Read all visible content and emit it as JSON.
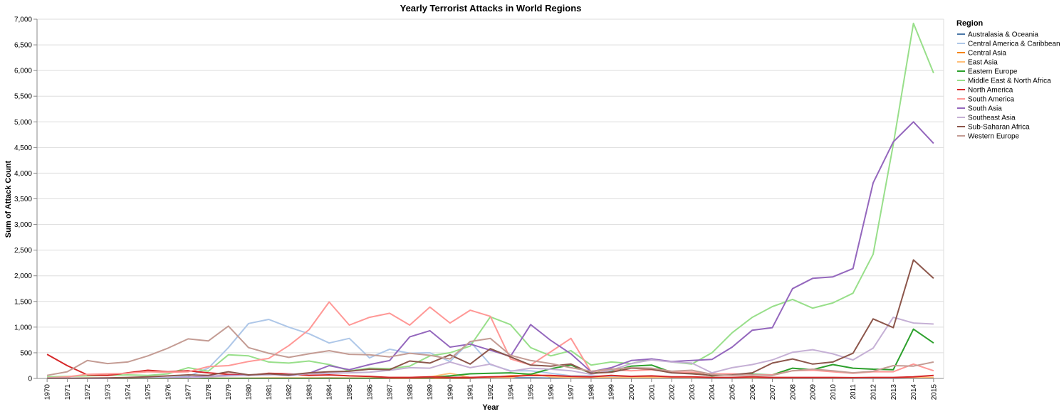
{
  "chart_data": {
    "type": "line",
    "title": "Yearly Terrorist Attacks in World Regions",
    "xlabel": "Year",
    "ylabel": "Sum of Attack Count",
    "ylim": [
      0,
      7000
    ],
    "yticks": [
      "0",
      "500",
      "1,000",
      "1,500",
      "2,000",
      "2,500",
      "3,000",
      "3,500",
      "4,000",
      "4,500",
      "5,000",
      "5,500",
      "6,000",
      "6,500",
      "7,000"
    ],
    "ytick_values": [
      0,
      500,
      1000,
      1500,
      2000,
      2500,
      3000,
      3500,
      4000,
      4500,
      5000,
      5500,
      6000,
      6500,
      7000
    ],
    "grid": true,
    "legend_title": "Region",
    "legend_position": "right",
    "x": [
      "1970",
      "1971",
      "1972",
      "1973",
      "1974",
      "1975",
      "1976",
      "1977",
      "1978",
      "1979",
      "1980",
      "1981",
      "1982",
      "1983",
      "1984",
      "1985",
      "1986",
      "1987",
      "1988",
      "1989",
      "1990",
      "1991",
      "1992",
      "1994",
      "1995",
      "1996",
      "1997",
      "1998",
      "1999",
      "2000",
      "2001",
      "2002",
      "2003",
      "2004",
      "2005",
      "2006",
      "2007",
      "2008",
      "2009",
      "2010",
      "2011",
      "2012",
      "2013",
      "2014",
      "2015"
    ],
    "series": [
      {
        "name": "Australasia & Oceania",
        "color": "#4c78a8",
        "values": [
          1,
          1,
          1,
          1,
          1,
          1,
          1,
          1,
          1,
          1,
          1,
          1,
          1,
          5,
          10,
          5,
          5,
          5,
          10,
          15,
          20,
          20,
          5,
          10,
          10,
          5,
          5,
          5,
          5,
          5,
          5,
          5,
          5,
          5,
          5,
          5,
          5,
          5,
          5,
          5,
          5,
          5,
          5,
          5,
          5
        ]
      },
      {
        "name": "Central America & Caribbean",
        "color": "#aec7e8",
        "values": [
          5,
          5,
          5,
          5,
          5,
          10,
          20,
          40,
          200,
          600,
          1070,
          1150,
          1000,
          870,
          690,
          780,
          400,
          570,
          490,
          500,
          330,
          720,
          270,
          150,
          150,
          100,
          50,
          50,
          30,
          20,
          15,
          10,
          10,
          5,
          5,
          10,
          5,
          5,
          5,
          5,
          5,
          5,
          5,
          5,
          5
        ]
      },
      {
        "name": "Central Asia",
        "color": "#f58518",
        "values": [
          0,
          0,
          0,
          0,
          0,
          0,
          0,
          0,
          0,
          0,
          0,
          0,
          0,
          0,
          0,
          0,
          0,
          0,
          0,
          0,
          0,
          0,
          20,
          50,
          60,
          50,
          30,
          20,
          15,
          20,
          20,
          15,
          10,
          10,
          10,
          5,
          5,
          5,
          5,
          5,
          5,
          10,
          10,
          15,
          10
        ]
      },
      {
        "name": "East Asia",
        "color": "#ffbf79",
        "values": [
          5,
          5,
          10,
          5,
          5,
          5,
          5,
          5,
          5,
          5,
          5,
          10,
          10,
          10,
          10,
          10,
          10,
          20,
          20,
          30,
          100,
          20,
          20,
          15,
          90,
          30,
          20,
          20,
          15,
          15,
          15,
          10,
          10,
          10,
          5,
          5,
          10,
          10,
          10,
          10,
          10,
          10,
          10,
          20,
          20
        ]
      },
      {
        "name": "Eastern Europe",
        "color": "#2ca02c",
        "values": [
          1,
          1,
          1,
          1,
          1,
          1,
          1,
          1,
          1,
          1,
          1,
          1,
          1,
          1,
          1,
          1,
          1,
          5,
          10,
          20,
          50,
          90,
          100,
          110,
          80,
          190,
          260,
          100,
          140,
          240,
          260,
          120,
          110,
          50,
          80,
          80,
          70,
          200,
          170,
          270,
          200,
          180,
          170,
          960,
          690
        ]
      },
      {
        "name": "Middle East & North Africa",
        "color": "#98df8a",
        "values": [
          30,
          40,
          50,
          60,
          70,
          60,
          90,
          210,
          140,
          460,
          440,
          320,
          300,
          340,
          270,
          150,
          200,
          190,
          240,
          440,
          500,
          630,
          1200,
          1050,
          600,
          440,
          540,
          260,
          320,
          290,
          380,
          320,
          280,
          500,
          890,
          1190,
          1400,
          1540,
          1370,
          1470,
          1660,
          2420,
          4560,
          6920,
          5950
        ]
      },
      {
        "name": "North America",
        "color": "#d62728",
        "values": [
          470,
          250,
          70,
          60,
          110,
          160,
          130,
          150,
          110,
          80,
          60,
          100,
          90,
          60,
          70,
          50,
          40,
          20,
          20,
          30,
          20,
          20,
          30,
          40,
          60,
          60,
          40,
          30,
          60,
          40,
          50,
          30,
          30,
          20,
          20,
          30,
          20,
          20,
          20,
          20,
          15,
          20,
          20,
          30,
          60
        ]
      },
      {
        "name": "South America",
        "color": "#ff9896",
        "values": [
          10,
          30,
          80,
          90,
          100,
          130,
          120,
          130,
          230,
          250,
          330,
          390,
          640,
          950,
          1490,
          1040,
          1190,
          1270,
          1040,
          1390,
          1080,
          1330,
          1210,
          380,
          260,
          520,
          780,
          130,
          170,
          150,
          170,
          120,
          120,
          90,
          90,
          70,
          70,
          150,
          160,
          130,
          100,
          130,
          130,
          280,
          150
        ]
      },
      {
        "name": "South Asia",
        "color": "#9467bd",
        "values": [
          1,
          1,
          1,
          1,
          5,
          5,
          10,
          20,
          40,
          60,
          60,
          80,
          60,
          100,
          250,
          170,
          270,
          350,
          810,
          930,
          610,
          670,
          550,
          430,
          1050,
          740,
          480,
          130,
          210,
          350,
          380,
          330,
          350,
          370,
          610,
          940,
          990,
          1750,
          1950,
          1980,
          2140,
          3810,
          4610,
          5000,
          4580
        ]
      },
      {
        "name": "Southeast Asia",
        "color": "#c5b0d5",
        "values": [
          5,
          5,
          5,
          5,
          10,
          10,
          10,
          10,
          30,
          50,
          60,
          70,
          80,
          90,
          100,
          110,
          120,
          160,
          210,
          200,
          320,
          210,
          280,
          140,
          200,
          180,
          150,
          80,
          160,
          290,
          360,
          320,
          300,
          110,
          210,
          270,
          360,
          510,
          560,
          480,
          360,
          590,
          1190,
          1080,
          1060
        ]
      },
      {
        "name": "Sub-Saharan Africa",
        "color": "#8c564b",
        "values": [
          1,
          1,
          5,
          10,
          20,
          30,
          50,
          70,
          60,
          130,
          70,
          90,
          70,
          110,
          130,
          140,
          180,
          170,
          340,
          300,
          460,
          280,
          580,
          420,
          260,
          240,
          280,
          100,
          120,
          200,
          180,
          110,
          90,
          60,
          70,
          110,
          300,
          380,
          280,
          320,
          490,
          1160,
          990,
          2310,
          1950
        ]
      },
      {
        "name": "Western Europe",
        "color": "#c49c94",
        "values": [
          60,
          130,
          350,
          290,
          320,
          440,
          590,
          770,
          730,
          1020,
          600,
          490,
          410,
          480,
          540,
          470,
          460,
          420,
          490,
          450,
          380,
          720,
          780,
          450,
          350,
          290,
          210,
          140,
          180,
          210,
          200,
          140,
          160,
          80,
          60,
          70,
          60,
          150,
          180,
          150,
          110,
          140,
          250,
          240,
          320
        ]
      }
    ]
  }
}
